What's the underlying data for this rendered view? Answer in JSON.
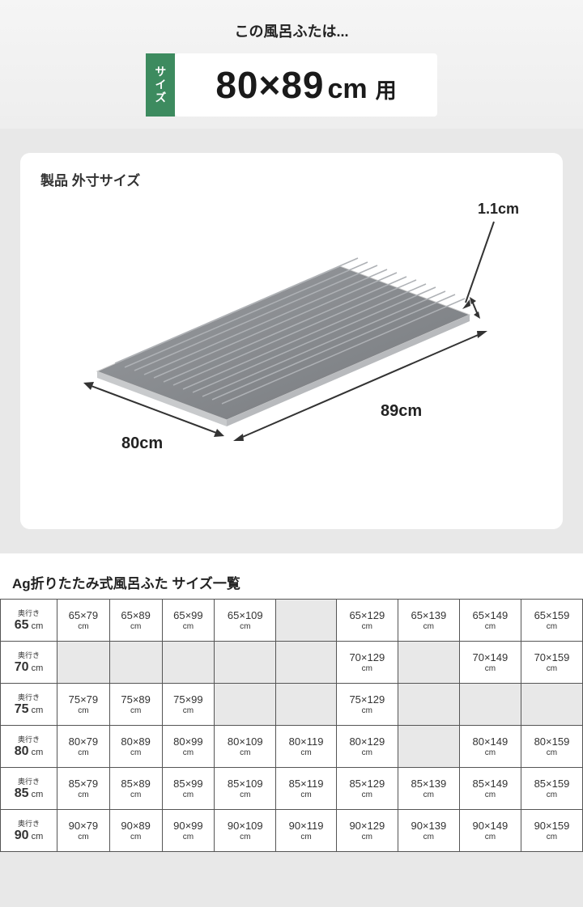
{
  "header": {
    "subtitle": "この風呂ふたは...",
    "sizeTag": "サイズ",
    "sizeMain": "80×89",
    "sizeUnit": "cm",
    "sizeSuffix": "用"
  },
  "diagram": {
    "title": "製品 外寸サイズ",
    "thickness": "1.1cm",
    "length": "89cm",
    "width": "80cm",
    "panel_color": "#8a8d91",
    "panel_dark": "#6f7276",
    "line_color": "#333333"
  },
  "table": {
    "title": "Ag折りたたみ式風呂ふた サイズ一覧",
    "depths": [
      65,
      70,
      75,
      80,
      85,
      90
    ],
    "depthLabel": "奥行き",
    "unit": "cm",
    "rows": [
      [
        "65×79",
        "65×89",
        "65×99",
        "65×109",
        "",
        "65×129",
        "65×139",
        "65×149",
        "65×159"
      ],
      [
        "",
        "",
        "",
        "",
        "",
        "70×129",
        "",
        "70×149",
        "70×159"
      ],
      [
        "75×79",
        "75×89",
        "75×99",
        "",
        "",
        "75×129",
        "",
        "",
        ""
      ],
      [
        "80×79",
        "80×89",
        "80×99",
        "80×109",
        "80×119",
        "80×129",
        "",
        "80×149",
        "80×159"
      ],
      [
        "85×79",
        "85×89",
        "85×99",
        "85×109",
        "85×119",
        "85×129",
        "85×139",
        "85×149",
        "85×159"
      ],
      [
        "90×79",
        "90×89",
        "90×99",
        "90×109",
        "90×119",
        "90×129",
        "90×139",
        "90×149",
        "90×159"
      ]
    ]
  }
}
